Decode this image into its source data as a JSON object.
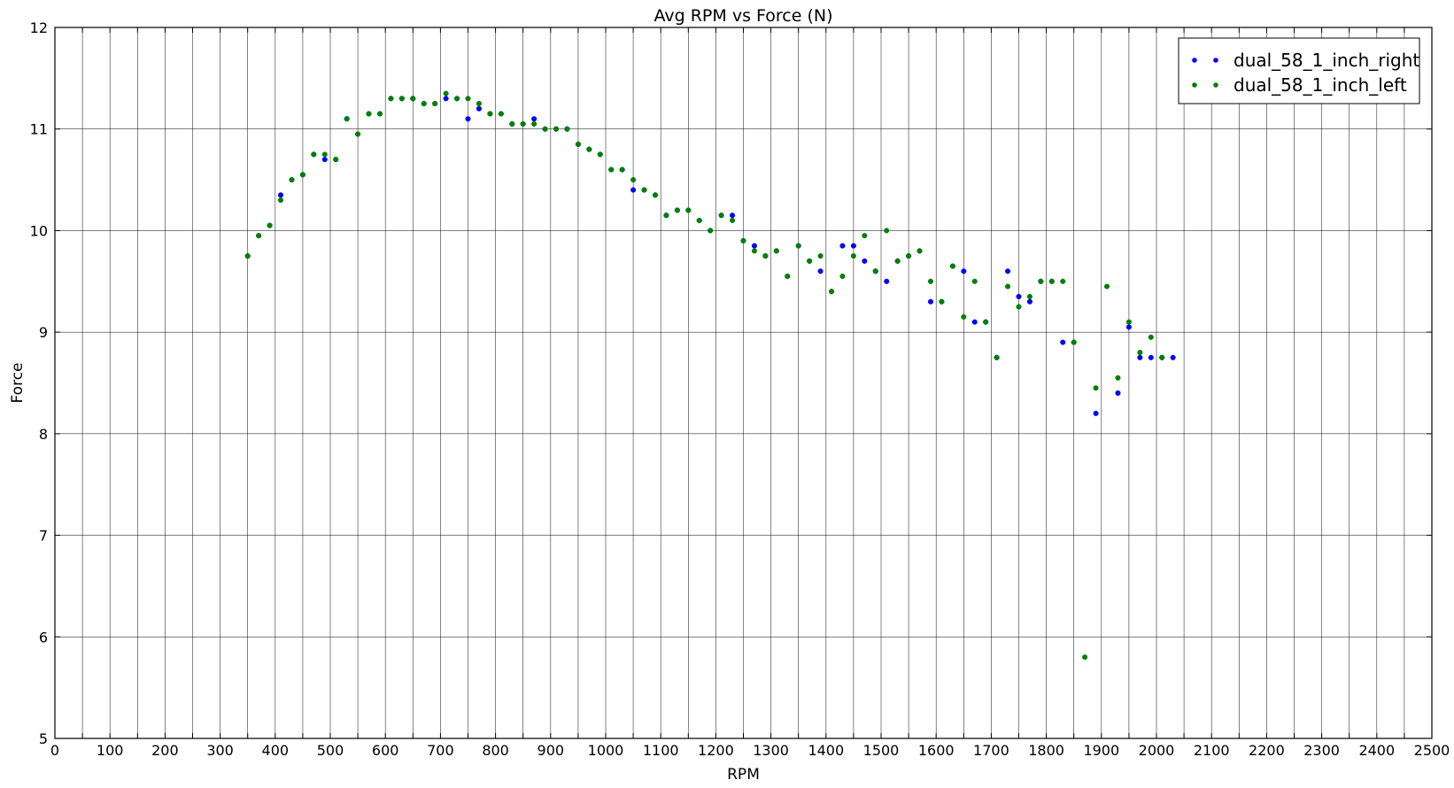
{
  "chart_data": {
    "type": "scatter",
    "title": "Avg RPM vs Force (N)",
    "xlabel": "RPM",
    "ylabel": "Force",
    "xlim": [
      0,
      2500
    ],
    "ylim": [
      5,
      12
    ],
    "xticks": [
      0,
      100,
      200,
      300,
      400,
      500,
      600,
      700,
      800,
      900,
      1000,
      1100,
      1200,
      1300,
      1400,
      1500,
      1600,
      1700,
      1800,
      1900,
      2000,
      2100,
      2200,
      2300,
      2400,
      2500
    ],
    "yticks": [
      5,
      6,
      7,
      8,
      9,
      10,
      11,
      12
    ],
    "grid": true,
    "legend_position": "top-right",
    "series": [
      {
        "name": "dual_58_1_inch_right",
        "color": "#0000ff",
        "points": [
          [
            350,
            9.75
          ],
          [
            370,
            9.95
          ],
          [
            390,
            10.05
          ],
          [
            410,
            10.35
          ],
          [
            430,
            10.5
          ],
          [
            450,
            10.55
          ],
          [
            470,
            10.75
          ],
          [
            490,
            10.7
          ],
          [
            510,
            10.7
          ],
          [
            530,
            11.1
          ],
          [
            550,
            10.95
          ],
          [
            570,
            11.15
          ],
          [
            590,
            11.15
          ],
          [
            610,
            11.3
          ],
          [
            630,
            11.3
          ],
          [
            650,
            11.3
          ],
          [
            670,
            11.25
          ],
          [
            690,
            11.25
          ],
          [
            710,
            11.3
          ],
          [
            730,
            11.3
          ],
          [
            750,
            11.1
          ],
          [
            770,
            11.2
          ],
          [
            790,
            11.15
          ],
          [
            810,
            11.15
          ],
          [
            830,
            11.05
          ],
          [
            850,
            11.05
          ],
          [
            870,
            11.1
          ],
          [
            890,
            11.0
          ],
          [
            910,
            11.0
          ],
          [
            930,
            11.0
          ],
          [
            950,
            10.85
          ],
          [
            970,
            10.8
          ],
          [
            990,
            10.75
          ],
          [
            1010,
            10.6
          ],
          [
            1030,
            10.6
          ],
          [
            1050,
            10.4
          ],
          [
            1070,
            10.4
          ],
          [
            1090,
            10.35
          ],
          [
            1110,
            10.15
          ],
          [
            1130,
            10.2
          ],
          [
            1150,
            10.2
          ],
          [
            1170,
            10.1
          ],
          [
            1190,
            10.0
          ],
          [
            1210,
            10.15
          ],
          [
            1230,
            10.15
          ],
          [
            1250,
            9.9
          ],
          [
            1270,
            9.85
          ],
          [
            1290,
            9.75
          ],
          [
            1310,
            9.8
          ],
          [
            1330,
            9.55
          ],
          [
            1350,
            9.85
          ],
          [
            1370,
            9.7
          ],
          [
            1390,
            9.6
          ],
          [
            1410,
            9.4
          ],
          [
            1430,
            9.85
          ],
          [
            1450,
            9.85
          ],
          [
            1470,
            9.7
          ],
          [
            1490,
            9.6
          ],
          [
            1510,
            9.5
          ],
          [
            1530,
            9.7
          ],
          [
            1550,
            9.75
          ],
          [
            1570,
            9.8
          ],
          [
            1590,
            9.3
          ],
          [
            1610,
            9.3
          ],
          [
            1630,
            9.65
          ],
          [
            1650,
            9.6
          ],
          [
            1670,
            9.1
          ],
          [
            1690,
            9.1
          ],
          [
            1710,
            8.75
          ],
          [
            1730,
            9.6
          ],
          [
            1750,
            9.35
          ],
          [
            1770,
            9.3
          ],
          [
            1790,
            9.5
          ],
          [
            1810,
            9.5
          ],
          [
            1830,
            8.9
          ],
          [
            1850,
            8.9
          ],
          [
            1890,
            8.2
          ],
          [
            1930,
            8.4
          ],
          [
            1950,
            9.05
          ],
          [
            1970,
            8.75
          ],
          [
            1990,
            8.75
          ],
          [
            2010,
            8.75
          ],
          [
            2030,
            8.75
          ]
        ]
      },
      {
        "name": "dual_58_1_inch_left",
        "color": "#008000",
        "points": [
          [
            350,
            9.75
          ],
          [
            370,
            9.95
          ],
          [
            390,
            10.05
          ],
          [
            410,
            10.3
          ],
          [
            430,
            10.5
          ],
          [
            450,
            10.55
          ],
          [
            470,
            10.75
          ],
          [
            490,
            10.75
          ],
          [
            510,
            10.7
          ],
          [
            530,
            11.1
          ],
          [
            550,
            10.95
          ],
          [
            570,
            11.15
          ],
          [
            590,
            11.15
          ],
          [
            610,
            11.3
          ],
          [
            630,
            11.3
          ],
          [
            650,
            11.3
          ],
          [
            670,
            11.25
          ],
          [
            690,
            11.25
          ],
          [
            710,
            11.35
          ],
          [
            730,
            11.3
          ],
          [
            750,
            11.3
          ],
          [
            770,
            11.25
          ],
          [
            790,
            11.15
          ],
          [
            810,
            11.15
          ],
          [
            830,
            11.05
          ],
          [
            850,
            11.05
          ],
          [
            870,
            11.05
          ],
          [
            890,
            11.0
          ],
          [
            910,
            11.0
          ],
          [
            930,
            11.0
          ],
          [
            950,
            10.85
          ],
          [
            970,
            10.8
          ],
          [
            990,
            10.75
          ],
          [
            1010,
            10.6
          ],
          [
            1030,
            10.6
          ],
          [
            1050,
            10.5
          ],
          [
            1070,
            10.4
          ],
          [
            1090,
            10.35
          ],
          [
            1110,
            10.15
          ],
          [
            1130,
            10.2
          ],
          [
            1150,
            10.2
          ],
          [
            1170,
            10.1
          ],
          [
            1190,
            10.0
          ],
          [
            1210,
            10.15
          ],
          [
            1230,
            10.1
          ],
          [
            1250,
            9.9
          ],
          [
            1270,
            9.8
          ],
          [
            1290,
            9.75
          ],
          [
            1310,
            9.8
          ],
          [
            1330,
            9.55
          ],
          [
            1350,
            9.85
          ],
          [
            1370,
            9.7
          ],
          [
            1390,
            9.75
          ],
          [
            1410,
            9.4
          ],
          [
            1430,
            9.55
          ],
          [
            1450,
            9.75
          ],
          [
            1470,
            9.95
          ],
          [
            1490,
            9.6
          ],
          [
            1510,
            10.0
          ],
          [
            1530,
            9.7
          ],
          [
            1550,
            9.75
          ],
          [
            1570,
            9.8
          ],
          [
            1590,
            9.5
          ],
          [
            1610,
            9.3
          ],
          [
            1630,
            9.65
          ],
          [
            1650,
            9.15
          ],
          [
            1670,
            9.5
          ],
          [
            1690,
            9.1
          ],
          [
            1710,
            8.75
          ],
          [
            1730,
            9.45
          ],
          [
            1750,
            9.25
          ],
          [
            1770,
            9.35
          ],
          [
            1790,
            9.5
          ],
          [
            1810,
            9.5
          ],
          [
            1830,
            9.5
          ],
          [
            1850,
            8.9
          ],
          [
            1870,
            5.8
          ],
          [
            1890,
            8.45
          ],
          [
            1910,
            9.45
          ],
          [
            1930,
            8.55
          ],
          [
            1950,
            9.1
          ],
          [
            1970,
            8.8
          ],
          [
            1990,
            8.95
          ],
          [
            2010,
            8.75
          ]
        ]
      }
    ]
  }
}
